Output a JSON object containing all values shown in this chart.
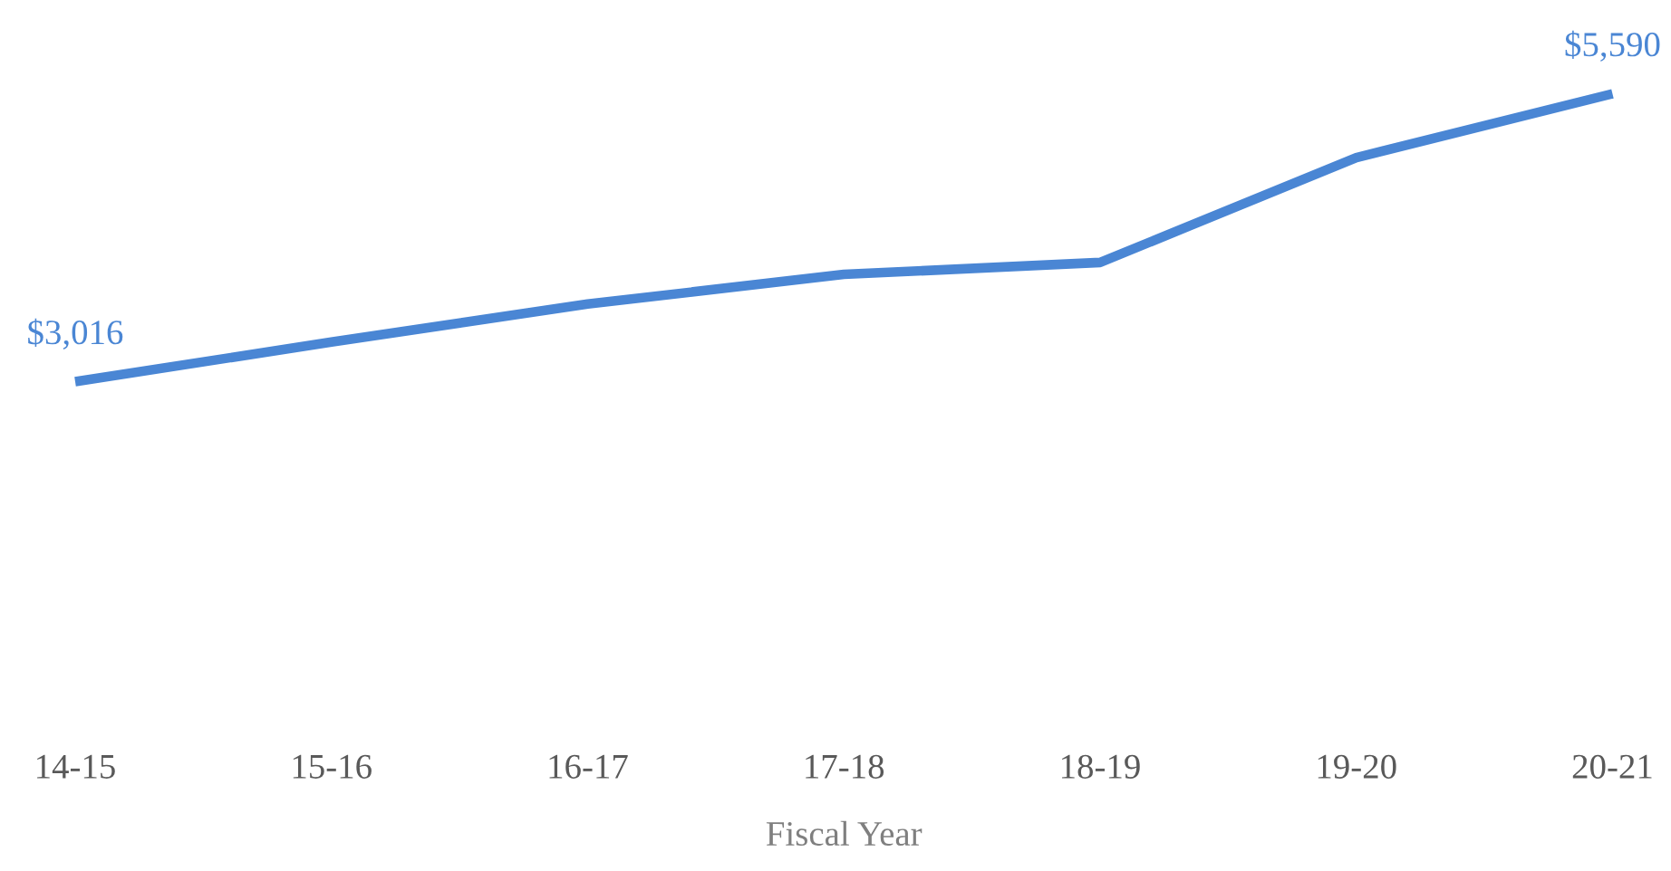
{
  "chart_data": {
    "type": "line",
    "xlabel": "Fiscal Year",
    "categories": [
      "14-15",
      "15-16",
      "16-17",
      "17-18",
      "18-19",
      "19-20",
      "20-21"
    ],
    "series": [
      {
        "color": "#4a86d4",
        "values": [
          3016,
          3371,
          3710,
          3975,
          4082,
          5019,
          5590
        ],
        "value_labels": [
          "$3,016",
          null,
          null,
          null,
          null,
          null,
          "$5,590"
        ]
      }
    ],
    "tick_labels": "x",
    "grid": false,
    "legend": false,
    "marker": "none",
    "line_style": "solid"
  }
}
